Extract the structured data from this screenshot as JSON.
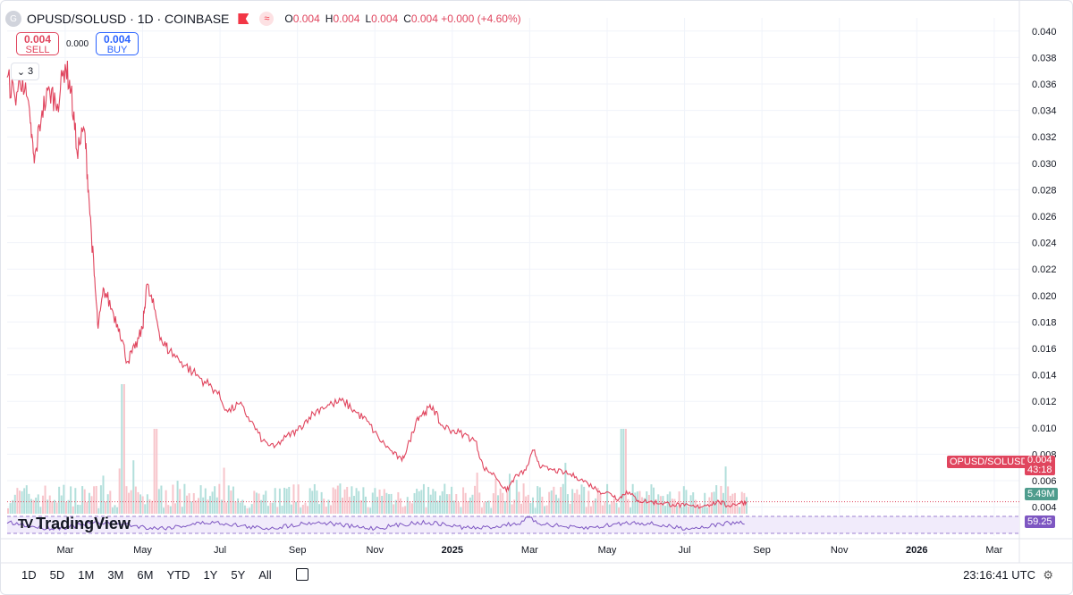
{
  "header": {
    "symbol_icon": "G",
    "title": "OPUSD/SOLUSD · 1D · COINBASE",
    "ohlc": [
      {
        "k": "O",
        "v": "0.004"
      },
      {
        "k": "H",
        "v": "0.004"
      },
      {
        "k": "L",
        "v": "0.004"
      },
      {
        "k": "C",
        "v": "0.004 +0.000 (+4.60%)"
      }
    ]
  },
  "trade": {
    "sell_price": "0.004",
    "sell_label": "SELL",
    "spread": "0.000",
    "buy_price": "0.004",
    "buy_label": "BUY"
  },
  "collapse_count": "3",
  "logo": {
    "mark": "TV",
    "text": "TradingView"
  },
  "price_label": {
    "name": "OPUSD/SOLUSD",
    "price": "0.004",
    "countdown": "43:18"
  },
  "volume_label": "5.49M",
  "rsi_label": "59.25",
  "ranges": [
    "1D",
    "5D",
    "1M",
    "3M",
    "6M",
    "YTD",
    "1Y",
    "5Y",
    "All"
  ],
  "clock": "23:16:41 UTC",
  "colors": {
    "line": "#e0455e",
    "rsi": "#7e57c2",
    "vol_up": "#b2dfdb",
    "vol_down": "#f7c5cb"
  },
  "chart_data": {
    "type": "line",
    "y_ticks": [
      "0.040",
      "0.038",
      "0.036",
      "0.034",
      "0.032",
      "0.030",
      "0.028",
      "0.026",
      "0.024",
      "0.022",
      "0.020",
      "0.018",
      "0.016",
      "0.014",
      "0.012",
      "0.010",
      "0.008",
      "0.006",
      "0.004"
    ],
    "ylim": [
      0.0035,
      0.041
    ],
    "x_ticks": [
      {
        "label": "Mar",
        "t": 1.0
      },
      {
        "label": "May",
        "t": 3.0
      },
      {
        "label": "Jul",
        "t": 5.0
      },
      {
        "label": "Sep",
        "t": 7.0
      },
      {
        "label": "Nov",
        "t": 9.0
      },
      {
        "label": "2025",
        "t": 11.0,
        "bold": true
      },
      {
        "label": "Mar",
        "t": 13.0
      },
      {
        "label": "May",
        "t": 15.0
      },
      {
        "label": "Jul",
        "t": 17.0
      },
      {
        "label": "Sep",
        "t": 19.0
      },
      {
        "label": "Nov",
        "t": 21.0
      },
      {
        "label": "2026",
        "t": 23.0,
        "bold": true
      },
      {
        "label": "Mar",
        "t": 25.0
      }
    ],
    "xlim": [
      -0.5,
      25.65
    ],
    "series": [
      {
        "points": [
          [
            -0.5,
            0.0365
          ],
          [
            -0.3,
            0.035
          ],
          [
            -0.1,
            0.0365
          ],
          [
            0.1,
            0.033
          ],
          [
            0.2,
            0.03
          ],
          [
            0.4,
            0.034
          ],
          [
            0.6,
            0.0355
          ],
          [
            0.8,
            0.0345
          ],
          [
            1.0,
            0.0375
          ],
          [
            1.15,
            0.0355
          ],
          [
            1.3,
            0.031
          ],
          [
            1.5,
            0.0325
          ],
          [
            1.6,
            0.028
          ],
          [
            1.75,
            0.0215
          ],
          [
            1.85,
            0.0175
          ],
          [
            2.0,
            0.0205
          ],
          [
            2.2,
            0.019
          ],
          [
            2.4,
            0.0175
          ],
          [
            2.6,
            0.015
          ],
          [
            2.8,
            0.016
          ],
          [
            3.0,
            0.0175
          ],
          [
            3.1,
            0.0208
          ],
          [
            3.3,
            0.019
          ],
          [
            3.5,
            0.0165
          ],
          [
            3.7,
            0.0158
          ],
          [
            4.0,
            0.015
          ],
          [
            4.3,
            0.0142
          ],
          [
            4.6,
            0.0135
          ],
          [
            4.9,
            0.0128
          ],
          [
            5.2,
            0.0112
          ],
          [
            5.5,
            0.0118
          ],
          [
            5.8,
            0.0105
          ],
          [
            6.1,
            0.009
          ],
          [
            6.4,
            0.0085
          ],
          [
            6.7,
            0.0093
          ],
          [
            7.0,
            0.0098
          ],
          [
            7.3,
            0.0108
          ],
          [
            7.6,
            0.0115
          ],
          [
            7.9,
            0.0118
          ],
          [
            8.2,
            0.012
          ],
          [
            8.5,
            0.0112
          ],
          [
            8.8,
            0.0105
          ],
          [
            9.1,
            0.0092
          ],
          [
            9.4,
            0.0083
          ],
          [
            9.7,
            0.0075
          ],
          [
            9.9,
            0.009
          ],
          [
            10.1,
            0.0108
          ],
          [
            10.3,
            0.0112
          ],
          [
            10.5,
            0.0116
          ],
          [
            10.7,
            0.0102
          ],
          [
            11.0,
            0.0098
          ],
          [
            11.3,
            0.0095
          ],
          [
            11.6,
            0.009
          ],
          [
            11.8,
            0.007
          ],
          [
            12.1,
            0.0064
          ],
          [
            12.4,
            0.0052
          ],
          [
            12.6,
            0.0062
          ],
          [
            12.9,
            0.0068
          ],
          [
            13.1,
            0.0083
          ],
          [
            13.3,
            0.007
          ],
          [
            13.6,
            0.0068
          ],
          [
            13.9,
            0.0066
          ],
          [
            14.2,
            0.0063
          ],
          [
            14.5,
            0.0058
          ],
          [
            14.8,
            0.0052
          ],
          [
            15.1,
            0.005
          ],
          [
            15.3,
            0.0046
          ],
          [
            15.5,
            0.0052
          ],
          [
            15.8,
            0.0045
          ],
          [
            16.1,
            0.0044
          ],
          [
            16.4,
            0.0043
          ],
          [
            16.7,
            0.0042
          ],
          [
            17.0,
            0.0041
          ],
          [
            17.3,
            0.004
          ],
          [
            17.6,
            0.0042
          ],
          [
            17.9,
            0.0044
          ],
          [
            18.1,
            0.0041
          ],
          [
            18.4,
            0.0043
          ],
          [
            18.6,
            0.0044
          ]
        ]
      }
    ],
    "last_price": 0.0044
  }
}
